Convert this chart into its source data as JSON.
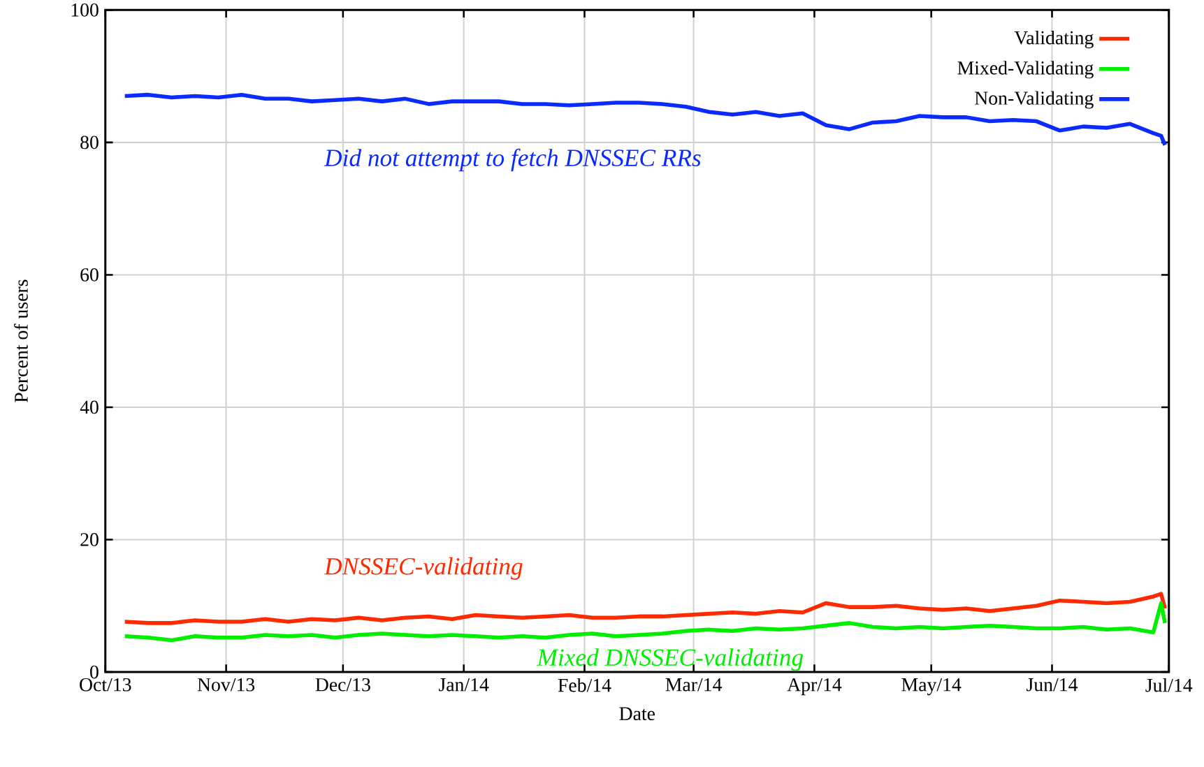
{
  "chart_data": {
    "type": "line",
    "xlabel": "Date",
    "ylabel": "Percent of users",
    "x": [
      "2013-10-06",
      "2013-10-12",
      "2013-10-18",
      "2013-10-24",
      "2013-10-30",
      "2013-11-05",
      "2013-11-11",
      "2013-11-17",
      "2013-11-23",
      "2013-11-29",
      "2013-12-05",
      "2013-12-11",
      "2013-12-17",
      "2013-12-23",
      "2013-12-29",
      "2014-01-04",
      "2014-01-10",
      "2014-01-16",
      "2014-01-22",
      "2014-01-28",
      "2014-02-03",
      "2014-02-09",
      "2014-02-15",
      "2014-02-21",
      "2014-02-27",
      "2014-03-05",
      "2014-03-11",
      "2014-03-17",
      "2014-03-23",
      "2014-03-29",
      "2014-04-04",
      "2014-04-10",
      "2014-04-16",
      "2014-04-22",
      "2014-04-28",
      "2014-05-04",
      "2014-05-10",
      "2014-05-16",
      "2014-05-22",
      "2014-05-28",
      "2014-06-03",
      "2014-06-09",
      "2014-06-15",
      "2014-06-21",
      "2014-06-27",
      "2014-06-29",
      "2014-06-30"
    ],
    "series": [
      {
        "name": "Validating",
        "color": "#ff2a00",
        "values": [
          7.6,
          7.4,
          7.4,
          7.8,
          7.6,
          7.6,
          8,
          7.6,
          8,
          7.8,
          8.2,
          7.8,
          8.2,
          8.4,
          8,
          8.6,
          8.4,
          8.2,
          8.4,
          8.6,
          8.2,
          8.2,
          8.4,
          8.4,
          8.6,
          8.8,
          9,
          8.8,
          9.2,
          9,
          10.4,
          9.8,
          9.8,
          10,
          9.6,
          9.4,
          9.6,
          9.2,
          9.6,
          10,
          10.8,
          10.6,
          10.4,
          10.6,
          11.4,
          11.8,
          9.6
        ]
      },
      {
        "name": "Mixed-Validating",
        "color": "#00ee00",
        "values": [
          5.4,
          5.2,
          4.8,
          5.4,
          5.2,
          5.2,
          5.6,
          5.4,
          5.6,
          5.2,
          5.6,
          5.8,
          5.6,
          5.4,
          5.6,
          5.4,
          5.2,
          5.4,
          5.2,
          5.6,
          5.8,
          5.4,
          5.6,
          5.8,
          6.2,
          6.4,
          6.2,
          6.6,
          6.4,
          6.6,
          7,
          7.4,
          6.8,
          6.6,
          6.8,
          6.6,
          6.8,
          7,
          6.8,
          6.6,
          6.6,
          6.8,
          6.4,
          6.6,
          6,
          10.4,
          7.4
        ]
      },
      {
        "name": "Non-Validating",
        "color": "#0a2aff",
        "values": [
          87,
          87.2,
          86.8,
          87,
          86.8,
          87.2,
          86.6,
          86.6,
          86.2,
          86.4,
          86.6,
          86.2,
          86.6,
          85.8,
          86.2,
          86.2,
          86.2,
          85.8,
          85.8,
          85.6,
          85.8,
          86,
          86,
          85.8,
          85.4,
          84.6,
          84.2,
          84.6,
          84,
          84.4,
          82.6,
          82,
          83,
          83.2,
          84,
          83.8,
          83.8,
          83.2,
          83.4,
          83.2,
          81.8,
          82.4,
          82.2,
          82.8,
          81.4,
          81,
          79.6
        ]
      }
    ],
    "annotations": [
      "DNSSEC-validating",
      "Mixed DNSSEC-validating",
      "Did not attempt to fetch DNSSEC RRs"
    ],
    "xlim": [
      "2013-10-01",
      "2014-07-01"
    ],
    "xticks": [
      {
        "value": "2013-10-01",
        "label": "Oct/13"
      },
      {
        "value": "2013-11-01",
        "label": "Nov/13"
      },
      {
        "value": "2013-12-01",
        "label": "Dec/13"
      },
      {
        "value": "2014-01-01",
        "label": "Jan/14"
      },
      {
        "value": "2014-02-01",
        "label": "Feb/14"
      },
      {
        "value": "2014-03-01",
        "label": "Mar/14"
      },
      {
        "value": "2014-04-01",
        "label": "Apr/14"
      },
      {
        "value": "2014-05-01",
        "label": "May/14"
      },
      {
        "value": "2014-06-01",
        "label": "Jun/14"
      },
      {
        "value": "2014-07-01",
        "label": "Jul/14"
      }
    ],
    "ylim": [
      0,
      100
    ],
    "yticks": [
      0,
      20,
      40,
      60,
      80,
      100
    ],
    "grid": true,
    "legend": "top right",
    "marker": "none",
    "line_style": "solid"
  }
}
